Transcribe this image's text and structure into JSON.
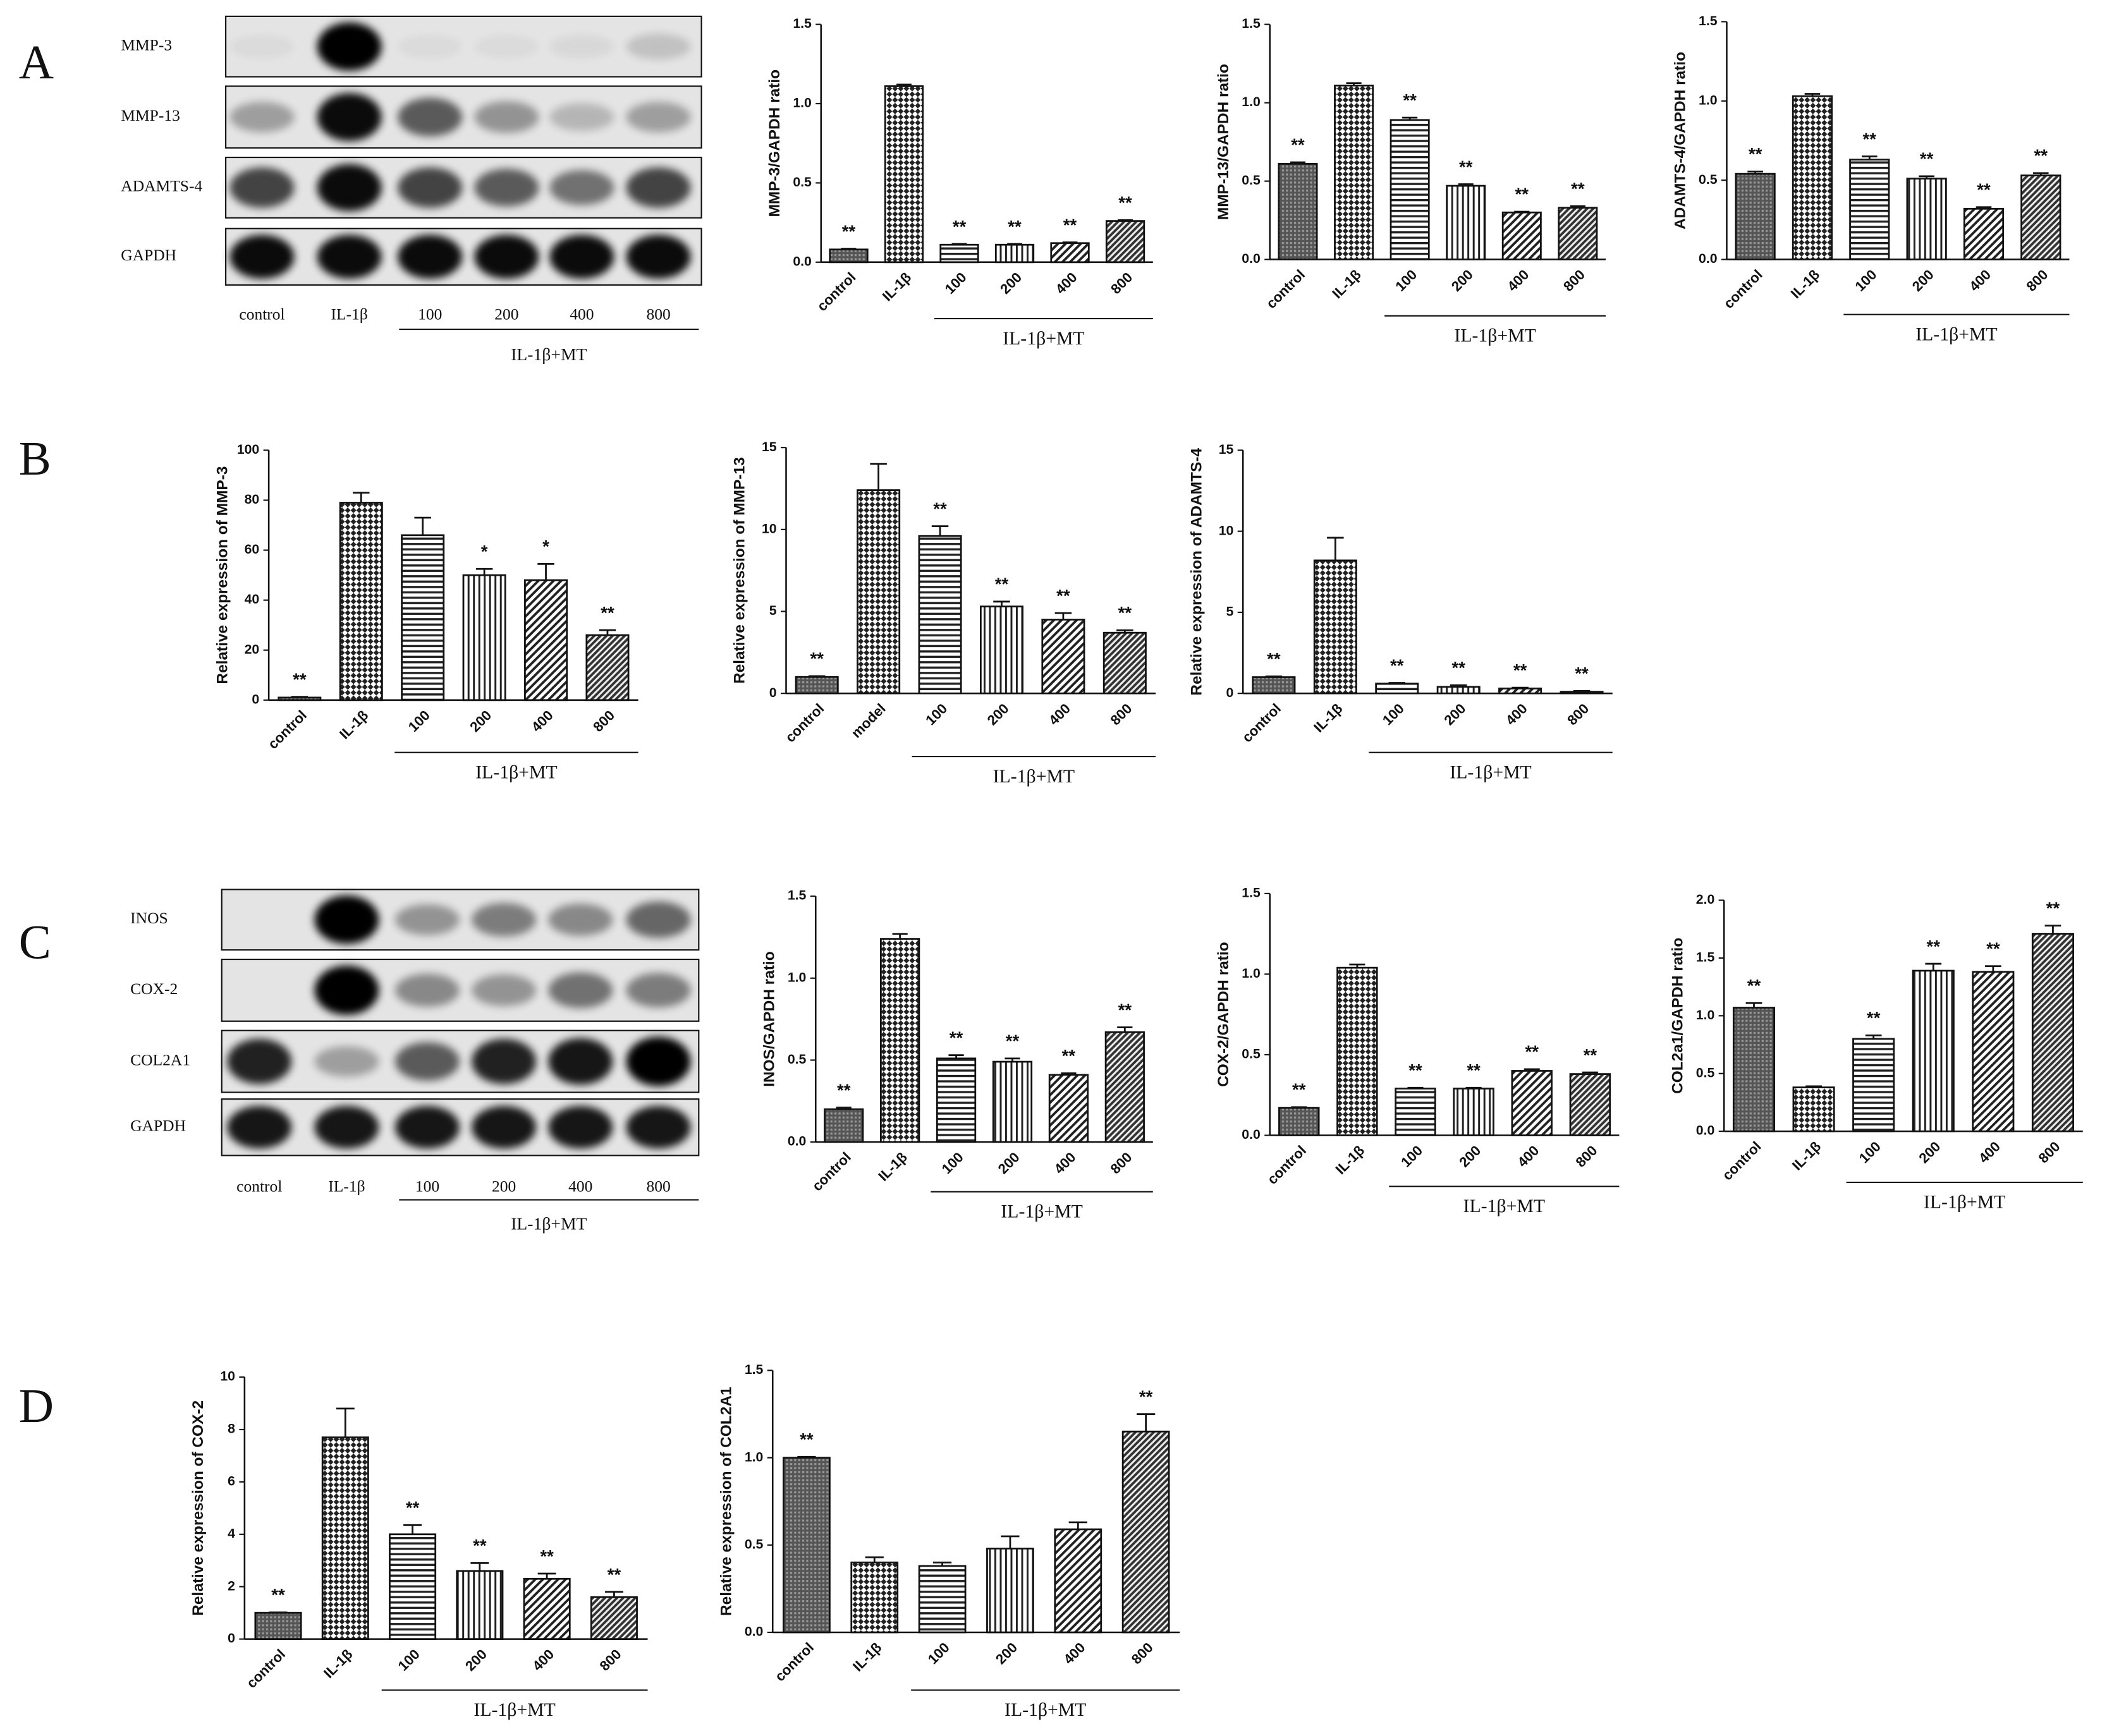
{
  "panel_labels": [
    "A",
    "B",
    "C",
    "D"
  ],
  "blots": [
    {
      "rows": [
        "MMP-3",
        "MMP-13",
        "ADAMTS-4",
        "GAPDH"
      ],
      "lanes": [
        "control",
        "IL-1β",
        "100",
        "200",
        "400",
        "800"
      ],
      "group_label": "IL-1β+MT"
    },
    {
      "rows": [
        "INOS",
        "COX-2",
        "COL2A1",
        "GAPDH"
      ],
      "lanes": [
        "control",
        "IL-1β",
        "100",
        "200",
        "400",
        "800"
      ],
      "group_label": "IL-1β+MT"
    }
  ],
  "chart_data": [
    {
      "type": "bar",
      "ylabel": "MMP-3/GAPDH ratio",
      "categories": [
        "control",
        "IL-1β",
        "100",
        "200",
        "400",
        "800"
      ],
      "group_label": "IL-1β+MT",
      "values": [
        0.08,
        1.11,
        0.11,
        0.11,
        0.12,
        0.26
      ],
      "errors": [
        0.005,
        0.01,
        0.005,
        0.005,
        0.005,
        0.005
      ],
      "annotations": [
        "**",
        null,
        "**",
        "**",
        "**",
        "**"
      ],
      "ylim": [
        0,
        1.5
      ],
      "yticks": [
        {
          "value": 0,
          "label": "0.0"
        },
        0.5,
        {
          "value": 1,
          "label": "1.0"
        },
        1.5
      ]
    },
    {
      "type": "bar",
      "ylabel": "MMP-13/GAPDH ratio",
      "categories": [
        "control",
        "IL-1β",
        "100",
        "200",
        "400",
        "800"
      ],
      "group_label": "IL-1β+MT",
      "values": [
        0.61,
        1.11,
        0.89,
        0.47,
        0.3,
        0.33
      ],
      "errors": [
        0.01,
        0.015,
        0.015,
        0.01,
        0.005,
        0.01
      ],
      "annotations": [
        "**",
        null,
        "**",
        "**",
        "**",
        "**"
      ],
      "ylim": [
        0,
        1.5
      ],
      "yticks": [
        {
          "value": 0,
          "label": "0.0"
        },
        0.5,
        {
          "value": 1,
          "label": "1.0"
        },
        1.5
      ]
    },
    {
      "type": "bar",
      "ylabel": "ADAMTS-4/GAPDH ratio",
      "categories": [
        "control",
        "IL-1β",
        "100",
        "200",
        "400",
        "800"
      ],
      "group_label": "IL-1β+MT",
      "values": [
        0.54,
        1.03,
        0.63,
        0.51,
        0.32,
        0.53
      ],
      "errors": [
        0.015,
        0.015,
        0.02,
        0.015,
        0.01,
        0.015
      ],
      "annotations": [
        "**",
        null,
        "**",
        "**",
        "**",
        "**"
      ],
      "ylim": [
        0,
        1.5
      ],
      "yticks": [
        {
          "value": 0,
          "label": "0.0"
        },
        0.5,
        {
          "value": 1,
          "label": "1.0"
        },
        1.5
      ]
    },
    {
      "type": "bar",
      "ylabel": "Relative expression of MMP-3",
      "categories": [
        "control",
        "IL-1β",
        "100",
        "200",
        "400",
        "800"
      ],
      "group_label": "IL-1β+MT",
      "values": [
        1,
        79,
        66,
        50,
        48,
        26
      ],
      "errors": [
        0.3,
        4,
        7,
        2.5,
        6.5,
        2
      ],
      "annotations": [
        "**",
        null,
        null,
        "*",
        "*",
        "**"
      ],
      "ylim": [
        0,
        100
      ],
      "yticks": [
        0,
        20,
        40,
        60,
        80,
        100
      ]
    },
    {
      "type": "bar",
      "ylabel": "Relative expression of MMP-13",
      "categories": [
        "control",
        "model",
        "100",
        "200",
        "400",
        "800"
      ],
      "group_label": "IL-1β+MT",
      "values": [
        1,
        12.4,
        9.6,
        5.3,
        4.5,
        3.7
      ],
      "errors": [
        0.05,
        1.6,
        0.6,
        0.3,
        0.4,
        0.15
      ],
      "annotations": [
        "**",
        null,
        "**",
        "**",
        "**",
        "**"
      ],
      "ylim": [
        0,
        15
      ],
      "yticks": [
        0,
        5,
        10,
        15
      ]
    },
    {
      "type": "bar",
      "ylabel": "Relative expression of ADAMTS-4",
      "categories": [
        "control",
        "IL-1β",
        "100",
        "200",
        "400",
        "800"
      ],
      "group_label": "IL-1β+MT",
      "values": [
        1,
        8.2,
        0.6,
        0.4,
        0.3,
        0.1
      ],
      "errors": [
        0.05,
        1.4,
        0.05,
        0.1,
        0.05,
        0.05
      ],
      "annotations": [
        "**",
        null,
        "**",
        "**",
        "**",
        "**"
      ],
      "ylim": [
        0,
        15
      ],
      "yticks": [
        0,
        5,
        10,
        15
      ]
    },
    {
      "type": "bar",
      "ylabel": "INOS/GAPDH ratio",
      "categories": [
        "control",
        "IL-1β",
        "100",
        "200",
        "400",
        "800"
      ],
      "group_label": "IL-1β+MT",
      "values": [
        0.2,
        1.24,
        0.51,
        0.49,
        0.41,
        0.67
      ],
      "errors": [
        0.01,
        0.03,
        0.02,
        0.02,
        0.01,
        0.03
      ],
      "annotations": [
        "**",
        null,
        "**",
        "**",
        "**",
        "**"
      ],
      "ylim": [
        0,
        1.5
      ],
      "yticks": [
        {
          "value": 0,
          "label": "0.0"
        },
        0.5,
        {
          "value": 1,
          "label": "1.0"
        },
        1.5
      ]
    },
    {
      "type": "bar",
      "ylabel": "COX-2/GAPDH ratio",
      "categories": [
        "control",
        "IL-1β",
        "100",
        "200",
        "400",
        "800"
      ],
      "group_label": "IL-1β+MT",
      "values": [
        0.17,
        1.04,
        0.29,
        0.29,
        0.4,
        0.38
      ],
      "errors": [
        0.005,
        0.02,
        0.005,
        0.005,
        0.01,
        0.01
      ],
      "annotations": [
        "**",
        null,
        "**",
        "**",
        "**",
        "**"
      ],
      "ylim": [
        0,
        1.5
      ],
      "yticks": [
        {
          "value": 0,
          "label": "0.0"
        },
        0.5,
        {
          "value": 1,
          "label": "1.0"
        },
        1.5
      ]
    },
    {
      "type": "bar",
      "ylabel": "COL2a1/GAPDH ratio",
      "categories": [
        "control",
        "IL-1β",
        "100",
        "200",
        "400",
        "800"
      ],
      "group_label": "IL-1β+MT",
      "values": [
        1.07,
        0.38,
        0.8,
        1.39,
        1.38,
        1.71
      ],
      "errors": [
        0.04,
        0.01,
        0.03,
        0.06,
        0.05,
        0.07
      ],
      "annotations": [
        "**",
        null,
        "**",
        "**",
        "**",
        "**"
      ],
      "ylim": [
        0,
        2
      ],
      "yticks": [
        {
          "value": 0,
          "label": "0.0"
        },
        0.5,
        {
          "value": 1,
          "label": "1.0"
        },
        1.5,
        {
          "value": 2,
          "label": "2.0"
        }
      ]
    },
    {
      "type": "bar",
      "ylabel": "Relative expression of COX-2",
      "categories": [
        "control",
        "IL-1β",
        "100",
        "200",
        "400",
        "800"
      ],
      "group_label": "IL-1β+MT",
      "values": [
        1,
        7.7,
        4,
        2.6,
        2.3,
        1.6
      ],
      "errors": [
        0.02,
        1.1,
        0.35,
        0.3,
        0.2,
        0.2
      ],
      "annotations": [
        "**",
        null,
        "**",
        "**",
        "**",
        "**"
      ],
      "ylim": [
        0,
        10
      ],
      "yticks": [
        0,
        2,
        4,
        6,
        8,
        10
      ]
    },
    {
      "type": "bar",
      "ylabel": "Relative expression of COL2A1",
      "categories": [
        "control",
        "IL-1β",
        "100",
        "200",
        "400",
        "800"
      ],
      "group_label": "IL-1β+MT",
      "values": [
        1,
        0.4,
        0.38,
        0.48,
        0.59,
        1.15
      ],
      "errors": [
        0.005,
        0.03,
        0.02,
        0.07,
        0.04,
        0.1
      ],
      "annotations": [
        "**",
        null,
        null,
        null,
        null,
        "**"
      ],
      "ylim": [
        0,
        1.5
      ],
      "yticks": [
        {
          "value": 0,
          "label": "0.0"
        },
        0.5,
        {
          "value": 1,
          "label": "1.0"
        },
        1.5
      ]
    }
  ]
}
